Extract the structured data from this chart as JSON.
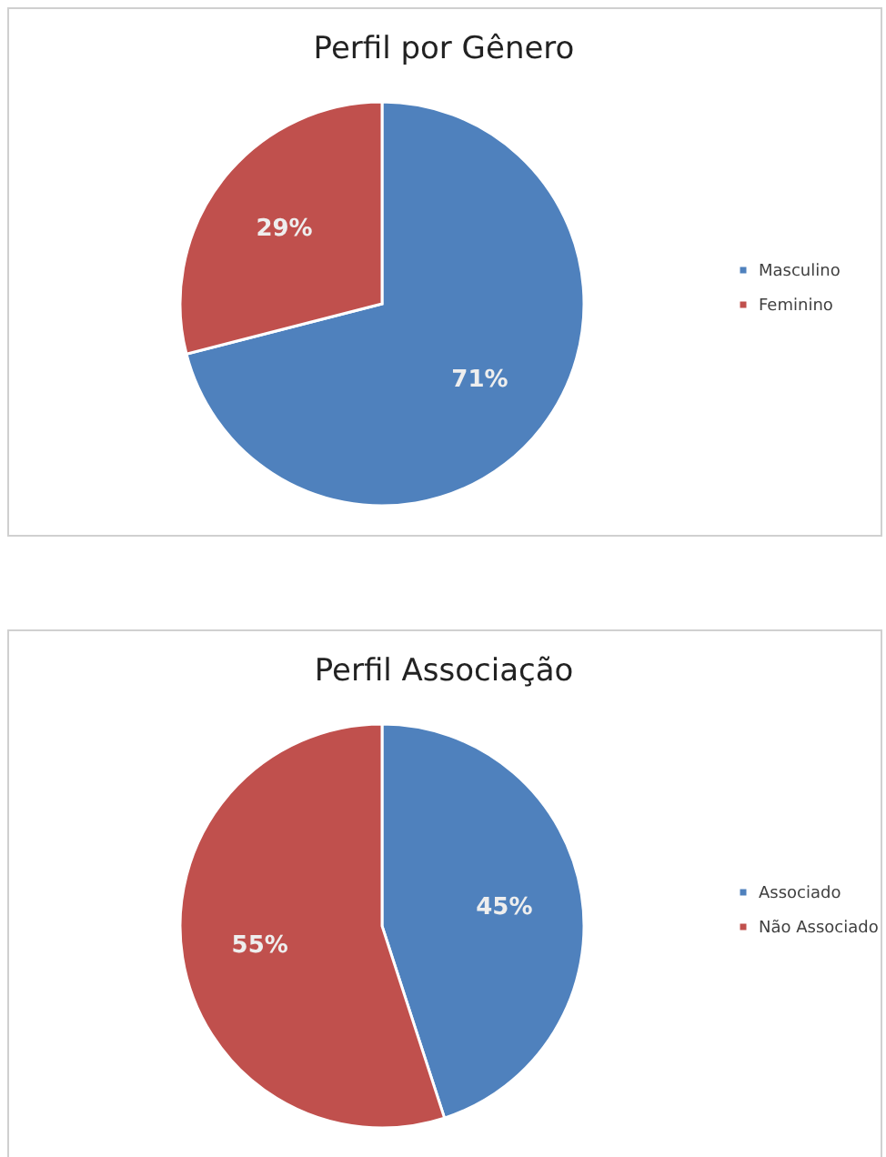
{
  "chart_data": [
    {
      "type": "pie",
      "title": "Perfil por Gênero",
      "categories": [
        "Masculino",
        "Feminino"
      ],
      "values": [
        71,
        29
      ],
      "colors": [
        "#4f81bd",
        "#c0504d"
      ],
      "value_labels": [
        "71%",
        "29%"
      ],
      "legend": "right"
    },
    {
      "type": "pie",
      "title": "Perfil Associação",
      "categories": [
        "Associado",
        "Não Associado"
      ],
      "values": [
        45,
        55
      ],
      "colors": [
        "#4f81bd",
        "#c0504d"
      ],
      "value_labels": [
        "45%",
        "55%"
      ],
      "legend": "right"
    }
  ]
}
